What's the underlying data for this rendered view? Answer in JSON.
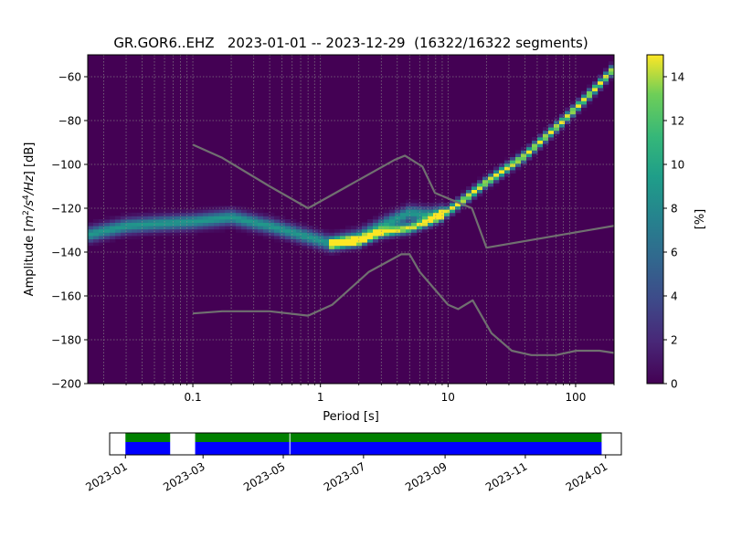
{
  "chart_data": [
    {
      "type": "heatmap",
      "title": "GR.GOR6..EHZ   2023-01-01 -- 2023-12-29  (16322/16322 segments)",
      "xlabel": "Period [s]",
      "ylabel_parts": [
        "Amplitude [",
        "m",
        "2",
        "/",
        "s",
        "4",
        "/",
        "Hz",
        "] [dB]"
      ],
      "x_scale": "log",
      "xlim": [
        0.015,
        200
      ],
      "ylim": [
        -200,
        -50
      ],
      "x_ticks": [
        {
          "value": 0.1,
          "label": "0.1"
        },
        {
          "value": 1,
          "label": "1"
        },
        {
          "value": 10,
          "label": "10"
        },
        {
          "value": 100,
          "label": "100"
        }
      ],
      "y_ticks": [
        {
          "value": -60,
          "label": "−60"
        },
        {
          "value": -80,
          "label": "−80"
        },
        {
          "value": -100,
          "label": "−100"
        },
        {
          "value": -120,
          "label": "−120"
        },
        {
          "value": -140,
          "label": "−140"
        },
        {
          "value": -160,
          "label": "−160"
        },
        {
          "value": -180,
          "label": "−180"
        },
        {
          "value": -200,
          "label": "−200"
        }
      ],
      "grid": true,
      "colormap": "viridis",
      "colorbar": {
        "label": "[%]",
        "range": [
          0,
          15
        ],
        "ticks": [
          {
            "value": 0,
            "label": "0"
          },
          {
            "value": 2,
            "label": "2"
          },
          {
            "value": 4,
            "label": "4"
          },
          {
            "value": 6,
            "label": "6"
          },
          {
            "value": 8,
            "label": "8"
          },
          {
            "value": 10,
            "label": "10"
          },
          {
            "value": 12,
            "label": "12"
          },
          {
            "value": 14,
            "label": "14"
          }
        ]
      },
      "density_ridges": [
        {
          "points": [
            [
              0.015,
              -132
            ],
            [
              0.03,
              -128
            ],
            [
              0.05,
              -127
            ],
            [
              0.1,
              -126
            ],
            [
              0.2,
              -124
            ],
            [
              0.4,
              -128
            ],
            [
              0.7,
              -132
            ],
            [
              1.2,
              -136
            ],
            [
              2.0,
              -133
            ],
            [
              3.5,
              -126
            ],
            [
              5.0,
              -122
            ],
            [
              7.0,
              -123
            ],
            [
              9.0,
              -122
            ]
          ],
          "peak": 9,
          "sigma_db": 2.2
        },
        {
          "points": [
            [
              1.2,
              -136
            ],
            [
              2.0,
              -135
            ],
            [
              3.0,
              -131
            ],
            [
              5.0,
              -129
            ],
            [
              7.0,
              -126
            ],
            [
              9.0,
              -123
            ],
            [
              12,
              -118
            ],
            [
              20,
              -108
            ],
            [
              40,
              -96
            ],
            [
              80,
              -80
            ],
            [
              150,
              -64
            ],
            [
              200,
              -56
            ]
          ],
          "peak": 15,
          "sigma_db": 1.5
        }
      ],
      "noise_models": [
        {
          "name": "",
          "points": [
            [
              0.1,
              -91
            ],
            [
              0.17,
              -97
            ],
            [
              0.4,
              -110
            ],
            [
              0.8,
              -120
            ],
            [
              3.8,
              -98
            ],
            [
              4.6,
              -96
            ],
            [
              6.3,
              -101
            ],
            [
              7.9,
              -113
            ],
            [
              15.4,
              -120
            ],
            [
              20,
              -138
            ],
            [
              200,
              -128
            ]
          ]
        },
        {
          "name": "",
          "points": [
            [
              0.1,
              -168
            ],
            [
              0.17,
              -167
            ],
            [
              0.4,
              -167
            ],
            [
              0.8,
              -169
            ],
            [
              1.24,
              -164
            ],
            [
              2.4,
              -149
            ],
            [
              4.3,
              -141
            ],
            [
              5.0,
              -141
            ],
            [
              6.0,
              -149
            ],
            [
              10,
              -164
            ],
            [
              12,
              -166
            ],
            [
              15.6,
              -162
            ],
            [
              21.9,
              -177
            ],
            [
              31.6,
              -185
            ],
            [
              45,
              -187
            ],
            [
              70,
              -187
            ],
            [
              101,
              -185
            ],
            [
              154,
              -185
            ],
            [
              200,
              -186
            ]
          ]
        }
      ]
    },
    {
      "type": "bar",
      "xlim": [
        "2022-12-20",
        "2024-01-13"
      ],
      "x_ticks": [
        "2023-01",
        "2023-03",
        "2023-05",
        "2023-07",
        "2023-09",
        "2023-11",
        "2024-01"
      ],
      "rows": [
        {
          "name": "",
          "color": "#008000",
          "spans": [
            [
              "2023-01-01",
              "2023-02-04"
            ],
            [
              "2023-02-23",
              "2023-12-29"
            ]
          ]
        },
        {
          "name": "",
          "color": "#0000ff",
          "spans": [
            [
              "2023-01-01",
              "2023-02-04"
            ],
            [
              "2023-02-23",
              "2023-12-29"
            ]
          ]
        }
      ],
      "gaps": [
        "2023-05-06"
      ]
    }
  ]
}
